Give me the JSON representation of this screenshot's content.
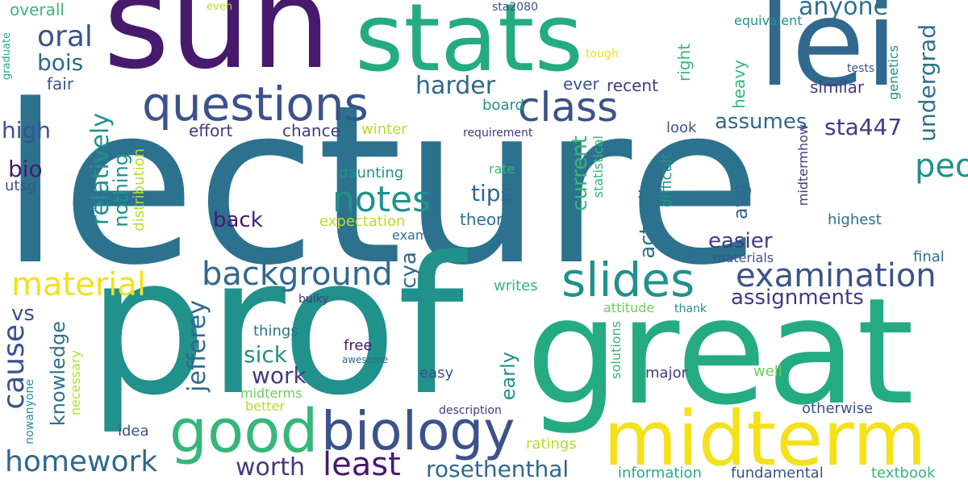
{
  "palette": {
    "dark_purple": "#471a6e",
    "purple": "#443983",
    "indigo": "#3b528b",
    "blue": "#31688e",
    "teal_blue": "#2c728e",
    "teal": "#21918c",
    "green_teal": "#25ab82",
    "green": "#35b779",
    "light_green": "#6ece58",
    "yellow_green": "#b5de2b",
    "yellow": "#f4e11a"
  },
  "words": {
    "lecture": "lecture",
    "prof": "prof",
    "sun": "sun",
    "stats": "stats",
    "lei": "lei",
    "great": "great",
    "midterm": "midterm",
    "good": "good",
    "biology": "biology",
    "questions": "questions",
    "class": "class",
    "slides": "slides",
    "background": "background",
    "examination": "examination",
    "notes": "notes",
    "homework": "homework",
    "material": "material",
    "least": "least",
    "people": "people",
    "oral": "oral",
    "cause": "cause",
    "anyone": "anyone",
    "harder": "harder",
    "rosethenthal": "rosethenthal",
    "worth": "worth",
    "undergrad": "undergrad",
    "work": "work",
    "sta447": "sta447",
    "jefferey": "jefferey",
    "relatively": "relatively",
    "knowledge": "knowledge",
    "tips": "tips",
    "assumes": "assumes",
    "current": "current",
    "bois": "bois",
    "back": "back",
    "easier": "easier",
    "actually": "actually",
    "sick": "sick",
    "assignments": "assignments",
    "high": "high",
    "bio": "bio",
    "cya": "cya",
    "early": "early",
    "nothing": "nothing",
    "vs": "vs",
    "avg": "avg",
    "overall": "overall",
    "fair": "fair",
    "utsg": "utsg",
    "graduate": "graduate",
    "even": "even",
    "sta2080": "sta2080",
    "equivalent": "equivalent",
    "tough": "tough",
    "tests": "tests",
    "genetics": "genetics",
    "similar": "similar",
    "recent": "recent",
    "ever": "ever",
    "right": "right",
    "heavy": "heavy",
    "board": "board",
    "effort": "effort",
    "chance": "chance",
    "winter": "winter",
    "requirement": "requirement",
    "look": "look",
    "statistical": "statistical",
    "difficult": "difficult",
    "midtermhow": "midtermhow",
    "daunting": "daunting",
    "rate": "rate",
    "distribution": "distribution",
    "highest": "highest",
    "expectation": "expectation",
    "theory": "theory",
    "exam": "exam",
    "materials": "materials",
    "final": "final",
    "writes": "writes",
    "attitude": "attitude",
    "thank": "thank",
    "bulky": "bulky",
    "things": "things",
    "free": "free",
    "awesome": "awesome",
    "solutions": "solutions",
    "major": "major",
    "well": "well",
    "easy": "easy",
    "midterms": "midterms",
    "better": "better",
    "necessary": "necessary",
    "nowanyone": "nowanyone",
    "otherwise": "otherwise",
    "description": "description",
    "idea": "idea",
    "ratings": "ratings",
    "information": "information",
    "fundamental": "fundamental",
    "textbook": "textbook"
  }
}
